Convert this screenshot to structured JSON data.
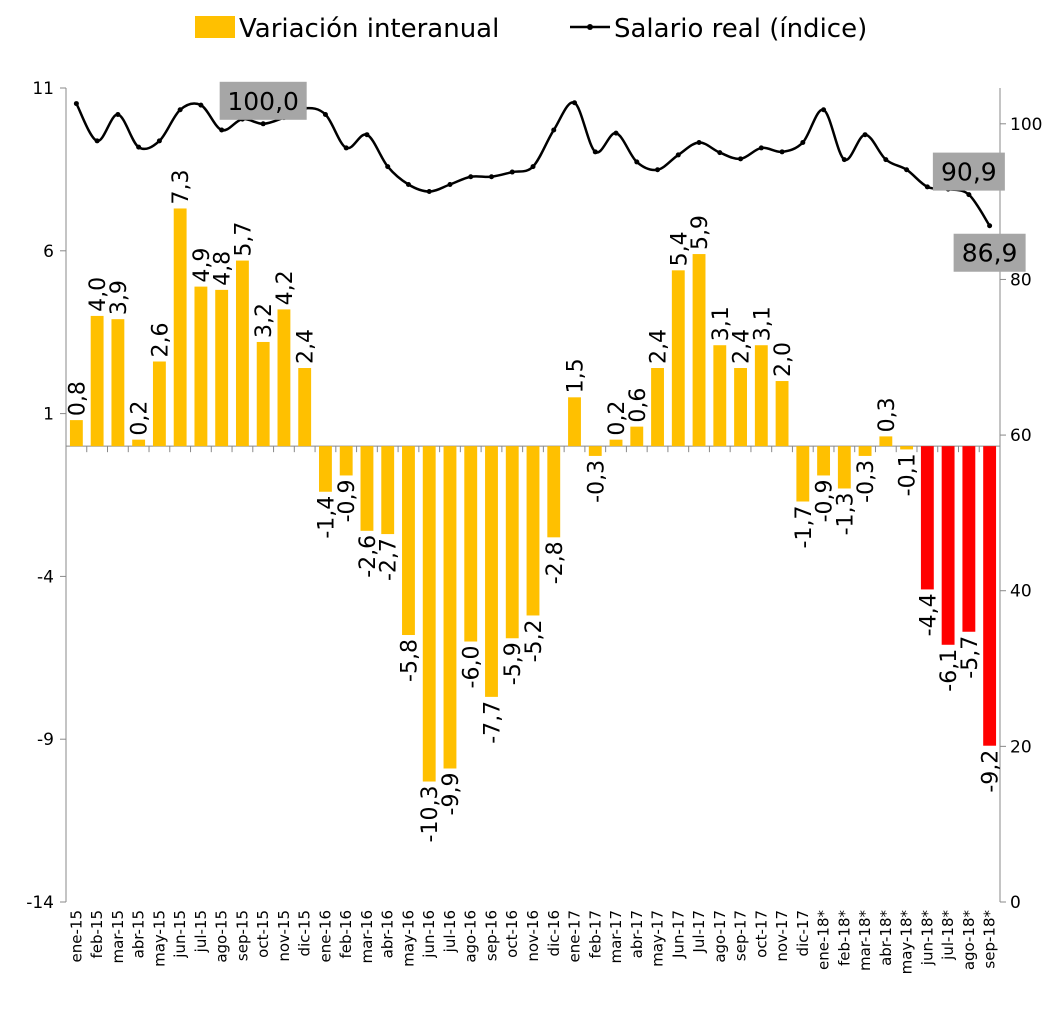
{
  "chart_data": {
    "type": "bar-line",
    "categories": [
      "ene-15",
      "feb-15",
      "mar-15",
      "abr-15",
      "may-15",
      "jun-15",
      "jul-15",
      "ago-15",
      "sep-15",
      "oct-15",
      "nov-15",
      "dic-15",
      "ene-16",
      "feb-16",
      "mar-16",
      "abr-16",
      "may-16",
      "jun-16",
      "jul-16",
      "ago-16",
      "sep-16",
      "oct-16",
      "nov-16",
      "dic-16",
      "ene-17",
      "feb-17",
      "mar-17",
      "abr-17",
      "may-17",
      "Jun-17",
      "Jul-17",
      "ago-17",
      "sep-17",
      "oct-17",
      "nov-17",
      "dic-17",
      "ene-18*",
      "feb-18*",
      "mar-18*",
      "abr-18*",
      "may-18*",
      "jun-18*",
      "jul-18*",
      "ago-18*",
      "sep-18*"
    ],
    "series": [
      {
        "name": "Variación interanual",
        "type": "bar",
        "color": "#FFC000",
        "colors": [
          "#FFC000",
          "#FFC000",
          "#FFC000",
          "#FFC000",
          "#FFC000",
          "#FFC000",
          "#FFC000",
          "#FFC000",
          "#FFC000",
          "#FFC000",
          "#FFC000",
          "#FFC000",
          "#FFC000",
          "#FFC000",
          "#FFC000",
          "#FFC000",
          "#FFC000",
          "#FFC000",
          "#FFC000",
          "#FFC000",
          "#FFC000",
          "#FFC000",
          "#FFC000",
          "#FFC000",
          "#FFC000",
          "#FFC000",
          "#FFC000",
          "#FFC000",
          "#FFC000",
          "#FFC000",
          "#FFC000",
          "#FFC000",
          "#FFC000",
          "#FFC000",
          "#FFC000",
          "#FFC000",
          "#FFC000",
          "#FFC000",
          "#FFC000",
          "#FFC000",
          "#FFC000",
          "#FF0000",
          "#FF0000",
          "#FF0000",
          "#FF0000"
        ],
        "values": [
          0.8,
          4.0,
          3.9,
          0.2,
          2.6,
          7.3,
          4.9,
          4.8,
          5.7,
          3.2,
          4.2,
          2.4,
          -1.4,
          -0.9,
          -2.6,
          -2.7,
          -5.8,
          -10.3,
          -9.9,
          -6.0,
          -7.7,
          -5.9,
          -5.2,
          -2.8,
          1.5,
          -0.3,
          0.2,
          0.6,
          2.4,
          5.4,
          5.9,
          3.1,
          2.4,
          3.1,
          2.0,
          -1.7,
          -0.9,
          -1.3,
          -0.3,
          0.3,
          -0.1,
          -4.4,
          -6.1,
          -5.7,
          -9.2
        ],
        "value_labels": [
          "0,8",
          "4,0",
          "3,9",
          "0,2",
          "2,6",
          "7,3",
          "4,9",
          "4,8",
          "5,7",
          "3,2",
          "4,2",
          "2,4",
          "-1,4",
          "-0,9",
          "-2,6",
          "-2,7",
          "-5,8",
          "-10,3",
          "-9,9",
          "-6,0",
          "-7,7",
          "-5,9",
          "-5,2",
          "-2,8",
          "1,5",
          "-0,3",
          "0,2",
          "0,6",
          "2,4",
          "5,4",
          "5,9",
          "3,1",
          "2,4",
          "3,1",
          "2,0",
          "-1,7",
          "-0,9",
          "-1,3",
          "-0,3",
          "0,3",
          "-0,1",
          "-4,4",
          "-6,1",
          "-5,7",
          "-9,2"
        ]
      },
      {
        "name": "Salario real (índice)",
        "type": "line",
        "axis": "y2",
        "color": "#000000",
        "values": [
          102.6,
          97.8,
          101.2,
          97.0,
          97.8,
          101.8,
          102.4,
          99.2,
          100.6,
          100.0,
          100.8,
          102.0,
          101.2,
          96.9,
          98.6,
          94.5,
          92.2,
          91.3,
          92.2,
          93.2,
          93.2,
          93.8,
          94.5,
          99.2,
          102.7,
          96.4,
          98.8,
          95.1,
          94.1,
          96.0,
          97.6,
          96.3,
          95.5,
          96.9,
          96.4,
          97.6,
          101.8,
          95.4,
          98.6,
          95.4,
          94.1,
          91.9,
          91.6,
          90.9,
          86.9
        ],
        "value_labels": [
          null,
          null,
          null,
          null,
          null,
          null,
          null,
          null,
          null,
          "100,0",
          null,
          null,
          null,
          null,
          null,
          null,
          null,
          null,
          null,
          null,
          null,
          null,
          null,
          null,
          null,
          null,
          null,
          null,
          null,
          null,
          null,
          null,
          null,
          null,
          null,
          null,
          null,
          null,
          null,
          null,
          null,
          null,
          null,
          "90,9",
          "86,9"
        ]
      }
    ],
    "ylim": [
      -14,
      11
    ],
    "yticks": [
      -14,
      -9,
      -4,
      1,
      6,
      11
    ],
    "y2lim": [
      0,
      104.6
    ],
    "y2ticks": [
      0,
      20,
      40,
      60,
      80,
      100
    ],
    "legend": "top"
  }
}
